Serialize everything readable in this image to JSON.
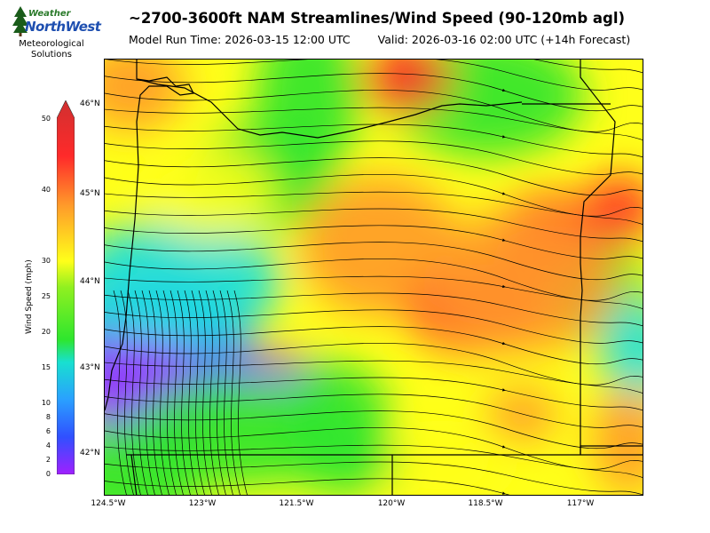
{
  "logo": {
    "line1": "Weather",
    "line2": "NorthWest",
    "sub1": "Meteorological",
    "sub2": "Solutions"
  },
  "title": "~2700-3600ft NAM Streamlines/Wind Speed (90-120mb agl)",
  "model_run": "Model Run Time: 2026-03-15 12:00 UTC",
  "valid": "Valid: 2026-03-16 02:00 UTC  (+14h Forecast)",
  "lat_labels": [
    "46°N",
    "45°N",
    "44°N",
    "43°N",
    "42°N"
  ],
  "lon_labels": [
    "124.5°W",
    "123°W",
    "121.5°W",
    "120°W",
    "118.5°W",
    "117°W"
  ],
  "colorbar": {
    "label": "Wind Speed (mph)",
    "ticks": [
      "50",
      "40",
      "30",
      "25",
      "20",
      "15",
      "10",
      "8",
      "6",
      "4",
      "2",
      "0"
    ]
  },
  "colors": {
    "low": "#9b30ff",
    "blue": "#2f7dff",
    "cyan": "#18e0e0",
    "green": "#2ee62e",
    "yellow": "#ffff1a",
    "orange": "#ff9a2a",
    "red": "#ff2a2a"
  }
}
